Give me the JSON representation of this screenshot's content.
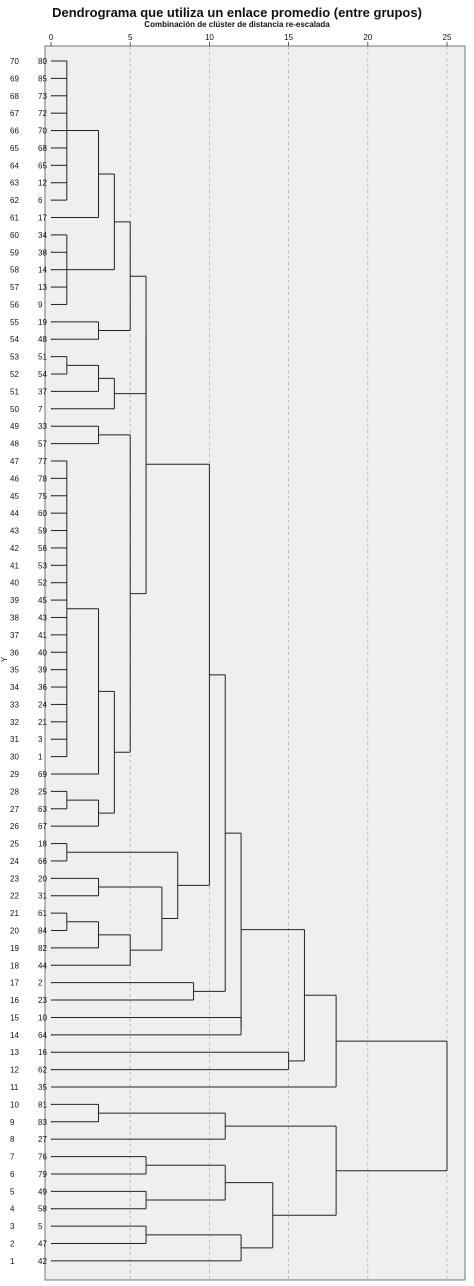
{
  "chart_data": {
    "type": "dendrogram",
    "title": "Dendrograma que utiliza un enlace promedio (entre grupos)",
    "subtitle": "Combinación de clúster de distancia re-escalada",
    "ylabel": "Y",
    "x_ticks": [
      0,
      5,
      10,
      15,
      20,
      25
    ],
    "xlim": [
      0,
      25
    ],
    "grid": "vertical dashed",
    "leaves": [
      {
        "pos": "70",
        "case": "80"
      },
      {
        "pos": "69",
        "case": "85"
      },
      {
        "pos": "68",
        "case": "73"
      },
      {
        "pos": "67",
        "case": "72"
      },
      {
        "pos": "66",
        "case": "70"
      },
      {
        "pos": "65",
        "case": "68"
      },
      {
        "pos": "64",
        "case": "65"
      },
      {
        "pos": "63",
        "case": "12"
      },
      {
        "pos": "62",
        "case": "6"
      },
      {
        "pos": "61",
        "case": "17"
      },
      {
        "pos": "60",
        "case": "34"
      },
      {
        "pos": "59",
        "case": "38"
      },
      {
        "pos": "58",
        "case": "14"
      },
      {
        "pos": "57",
        "case": "13"
      },
      {
        "pos": "56",
        "case": "9"
      },
      {
        "pos": "55",
        "case": "19"
      },
      {
        "pos": "54",
        "case": "48"
      },
      {
        "pos": "53",
        "case": "51"
      },
      {
        "pos": "52",
        "case": "54"
      },
      {
        "pos": "51",
        "case": "37"
      },
      {
        "pos": "50",
        "case": "7"
      },
      {
        "pos": "49",
        "case": "33"
      },
      {
        "pos": "48",
        "case": "57"
      },
      {
        "pos": "47",
        "case": "77"
      },
      {
        "pos": "46",
        "case": "78"
      },
      {
        "pos": "45",
        "case": "75"
      },
      {
        "pos": "44",
        "case": "60"
      },
      {
        "pos": "43",
        "case": "59"
      },
      {
        "pos": "42",
        "case": "56"
      },
      {
        "pos": "41",
        "case": "53"
      },
      {
        "pos": "40",
        "case": "52"
      },
      {
        "pos": "39",
        "case": "45"
      },
      {
        "pos": "38",
        "case": "43"
      },
      {
        "pos": "37",
        "case": "41"
      },
      {
        "pos": "36",
        "case": "40"
      },
      {
        "pos": "35",
        "case": "39"
      },
      {
        "pos": "34",
        "case": "36"
      },
      {
        "pos": "33",
        "case": "24"
      },
      {
        "pos": "32",
        "case": "21"
      },
      {
        "pos": "31",
        "case": "3"
      },
      {
        "pos": "30",
        "case": "1"
      },
      {
        "pos": "29",
        "case": "69"
      },
      {
        "pos": "28",
        "case": "25"
      },
      {
        "pos": "27",
        "case": "63"
      },
      {
        "pos": "26",
        "case": "67"
      },
      {
        "pos": "25",
        "case": "18"
      },
      {
        "pos": "24",
        "case": "66"
      },
      {
        "pos": "23",
        "case": "20"
      },
      {
        "pos": "22",
        "case": "31"
      },
      {
        "pos": "21",
        "case": "61"
      },
      {
        "pos": "20",
        "case": "84"
      },
      {
        "pos": "19",
        "case": "82"
      },
      {
        "pos": "18",
        "case": "44"
      },
      {
        "pos": "17",
        "case": "2"
      },
      {
        "pos": "16",
        "case": "23"
      },
      {
        "pos": "15",
        "case": "10"
      },
      {
        "pos": "14",
        "case": "64"
      },
      {
        "pos": "13",
        "case": "16"
      },
      {
        "pos": "12",
        "case": "62"
      },
      {
        "pos": "11",
        "case": "35"
      },
      {
        "pos": "10",
        "case": "81"
      },
      {
        "pos": "9",
        "case": "83"
      },
      {
        "pos": "8",
        "case": "27"
      },
      {
        "pos": "7",
        "case": "76"
      },
      {
        "pos": "6",
        "case": "79"
      },
      {
        "pos": "5",
        "case": "49"
      },
      {
        "pos": "4",
        "case": "58"
      },
      {
        "pos": "3",
        "case": "5"
      },
      {
        "pos": "2",
        "case": "47"
      },
      {
        "pos": "1",
        "case": "42"
      }
    ],
    "merges": [
      {
        "d": 1,
        "c": [
          0,
          1,
          2,
          3,
          4,
          5,
          6,
          7,
          8
        ]
      },
      {
        "d": 3,
        "c": [
          "n0",
          9
        ]
      },
      {
        "d": 1,
        "c": [
          10,
          11,
          12,
          13,
          14
        ]
      },
      {
        "d": 4,
        "c": [
          "n1",
          "n2"
        ]
      },
      {
        "d": 3,
        "c": [
          15,
          16
        ]
      },
      {
        "d": 5,
        "c": [
          "n3",
          "n4"
        ]
      },
      {
        "d": 1,
        "c": [
          17,
          18
        ]
      },
      {
        "d": 3,
        "c": [
          "n6",
          19
        ]
      },
      {
        "d": 4,
        "c": [
          "n7",
          20
        ]
      },
      {
        "d": 6,
        "c": [
          "n5",
          "n8"
        ]
      },
      {
        "d": 3,
        "c": [
          21,
          22
        ]
      },
      {
        "d": 1,
        "c": [
          23,
          24,
          25,
          26,
          27,
          28,
          29,
          30,
          31,
          32,
          33,
          34,
          35,
          36,
          37,
          38,
          39,
          40
        ]
      },
      {
        "d": 3,
        "c": [
          "n11",
          41
        ]
      },
      {
        "d": 1,
        "c": [
          42,
          43
        ]
      },
      {
        "d": 3,
        "c": [
          "n13",
          44
        ]
      },
      {
        "d": 4,
        "c": [
          "n12",
          "n14"
        ]
      },
      {
        "d": 5,
        "c": [
          "n10",
          "n15"
        ]
      },
      {
        "d": 6,
        "c": [
          "n9",
          "n16"
        ]
      },
      {
        "d": 1,
        "c": [
          45,
          46
        ]
      },
      {
        "d": 3,
        "c": [
          47,
          48
        ]
      },
      {
        "d": 1,
        "c": [
          49,
          50
        ]
      },
      {
        "d": 3,
        "c": [
          "n20",
          51
        ]
      },
      {
        "d": 5,
        "c": [
          "n21",
          52
        ]
      },
      {
        "d": 7,
        "c": [
          "n19",
          "n22"
        ]
      },
      {
        "d": 8,
        "c": [
          "n18",
          "n23"
        ]
      },
      {
        "d": 10,
        "c": [
          "n17",
          "n24"
        ]
      },
      {
        "d": 9,
        "c": [
          53,
          54
        ]
      },
      {
        "d": 11,
        "c": [
          "n25",
          "n26"
        ]
      },
      {
        "d": 12,
        "c": [
          55,
          56
        ]
      },
      {
        "d": 12,
        "c": [
          "n27",
          "n28"
        ]
      },
      {
        "d": 15,
        "c": [
          57,
          58
        ]
      },
      {
        "d": 16,
        "c": [
          "n29",
          "n30"
        ]
      },
      {
        "d": 18,
        "c": [
          "n31",
          59
        ]
      },
      {
        "d": 3,
        "c": [
          60,
          61
        ]
      },
      {
        "d": 11,
        "c": [
          "n33",
          62
        ]
      },
      {
        "d": 6,
        "c": [
          63,
          64
        ]
      },
      {
        "d": 6,
        "c": [
          65,
          66
        ]
      },
      {
        "d": 11,
        "c": [
          "n35",
          "n36"
        ]
      },
      {
        "d": 6,
        "c": [
          67,
          68
        ]
      },
      {
        "d": 12,
        "c": [
          "n38",
          69
        ]
      },
      {
        "d": 14,
        "c": [
          "n37",
          "n39"
        ]
      },
      {
        "d": 18,
        "c": [
          "n34",
          "n40"
        ]
      },
      {
        "d": 25,
        "c": [
          "n32",
          "n41"
        ]
      }
    ]
  }
}
